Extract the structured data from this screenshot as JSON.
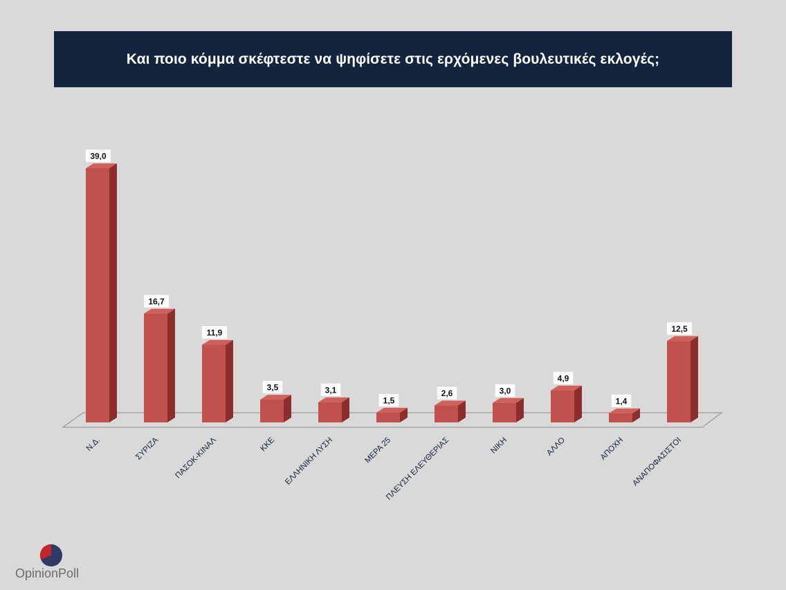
{
  "title": "Και ποιο κόμμα σκέφτεστε να ψηφίσετε  στις ερχόμενες βουλευτικές εκλογές;",
  "logo": {
    "text": "OpinionPoll"
  },
  "colors": {
    "bar_front": "#c0504d",
    "bar_side": "#8b2e2c",
    "bar_top": "#d0605c",
    "title_bg": "#13243f"
  },
  "chart_data": {
    "type": "bar",
    "title": "Και ποιο κόμμα σκέφτεστε να ψηφίσετε  στις ερχόμενες βουλευτικές εκλογές;",
    "categories": [
      "Ν.Δ.",
      "ΣΥΡΙΖΑ",
      "ΠΑΣΟΚ-ΚΙΝΑΛ",
      "ΚΚΕ",
      "ΕΛΛΗΝΙΚΗ ΛΥΣΗ",
      "ΜΕΡΑ 25",
      "ΠΛΕΥΣΗ ΕΛΕΥΘΕΡΙΑΣ",
      "ΝΙΚΗ",
      "ΑΛΛΟ",
      "ΑΠΟΧΗ",
      "ΑΝΑΠΟΦΑΣΙΣΤΟΙ"
    ],
    "values": [
      39.0,
      16.7,
      11.9,
      3.5,
      3.1,
      1.5,
      2.6,
      3.0,
      4.9,
      1.4,
      12.5
    ],
    "value_labels": [
      "39,0",
      "16,7",
      "11,9",
      "3,5",
      "3,1",
      "1,5",
      "2,6",
      "3,0",
      "4,9",
      "1,4",
      "12,5"
    ],
    "ylim": [
      0,
      40
    ],
    "grid": false,
    "legend": "none",
    "style": "3d-column"
  }
}
